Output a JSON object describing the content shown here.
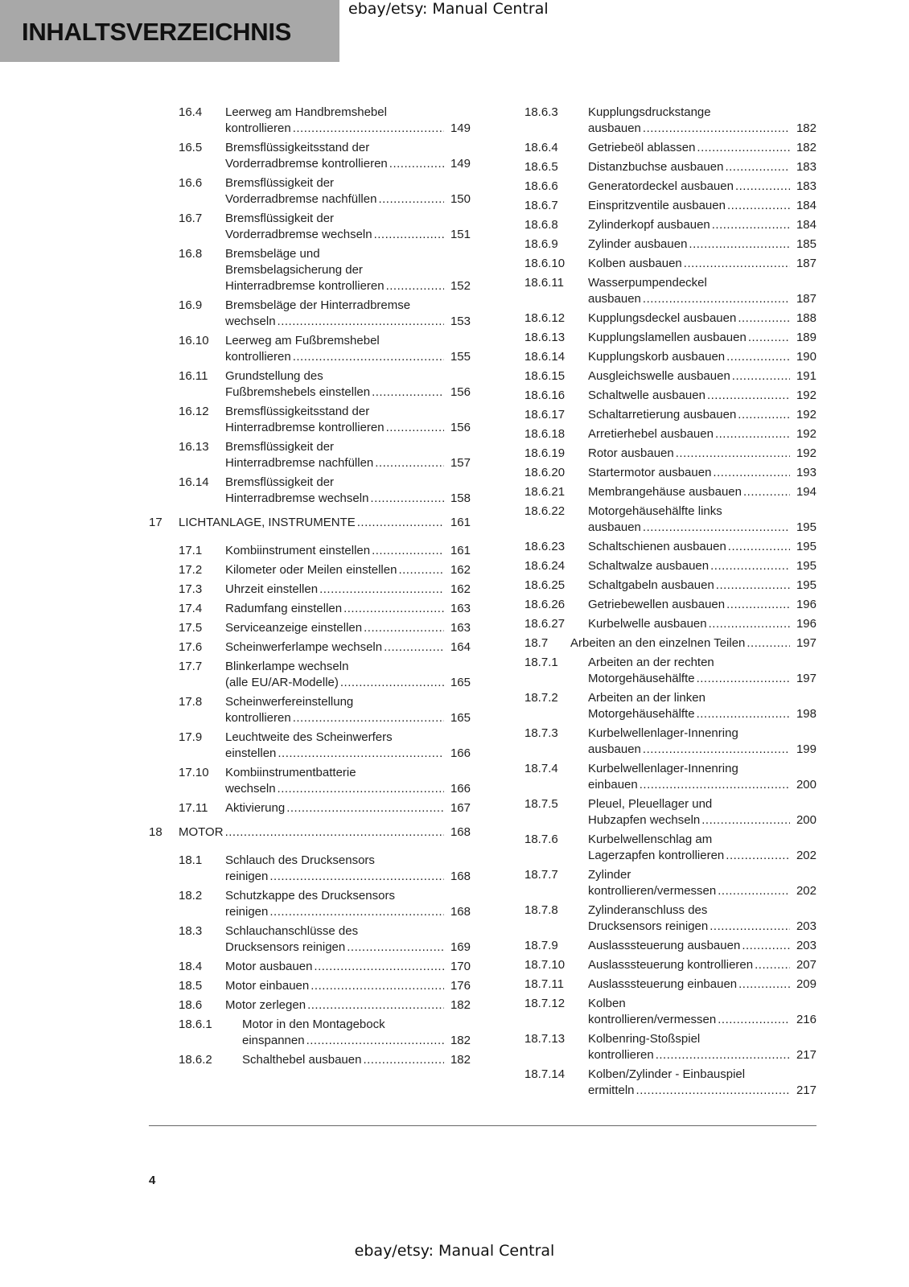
{
  "header": {
    "title": "INHALTSVERZEICHNIS"
  },
  "watermark": {
    "top": "ebay/etsy: Manual Central",
    "bottom": "ebay/etsy: Manual Central"
  },
  "footer": {
    "page_number": "4"
  },
  "columns": [
    [
      {
        "level": 2,
        "num": "16.4",
        "lines": [
          "Leerweg am Handbremshebel",
          "kontrollieren"
        ],
        "page": "149"
      },
      {
        "level": 2,
        "num": "16.5",
        "lines": [
          "Bremsflüssigkeitsstand der",
          "Vorderradbremse kontrollieren"
        ],
        "page": "149"
      },
      {
        "level": 2,
        "num": "16.6",
        "lines": [
          "Bremsflüssigkeit der",
          "Vorderradbremse nachfüllen"
        ],
        "page": "150"
      },
      {
        "level": 2,
        "num": "16.7",
        "lines": [
          "Bremsflüssigkeit der",
          "Vorderradbremse wechseln"
        ],
        "page": "151"
      },
      {
        "level": 2,
        "num": "16.8",
        "lines": [
          "Bremsbeläge und",
          "Bremsbelagsicherung der",
          "Hinterradbremse kontrollieren"
        ],
        "page": "152"
      },
      {
        "level": 2,
        "num": "16.9",
        "lines": [
          "Bremsbeläge der Hinterradbremse",
          "wechseln"
        ],
        "page": "153"
      },
      {
        "level": 2,
        "num": "16.10",
        "lines": [
          "Leerweg am Fußbremshebel",
          "kontrollieren"
        ],
        "page": "155"
      },
      {
        "level": 2,
        "num": "16.11",
        "lines": [
          "Grundstellung des",
          "Fußbremshebels einstellen"
        ],
        "page": "156"
      },
      {
        "level": 2,
        "num": "16.12",
        "lines": [
          "Bremsflüssigkeitsstand der",
          "Hinterradbremse kontrollieren"
        ],
        "page": "156"
      },
      {
        "level": 2,
        "num": "16.13",
        "lines": [
          "Bremsflüssigkeit der",
          "Hinterradbremse nachfüllen"
        ],
        "page": "157"
      },
      {
        "level": 2,
        "num": "16.14",
        "lines": [
          "Bremsflüssigkeit der",
          "Hinterradbremse wechseln"
        ],
        "page": "158"
      },
      {
        "level": 1,
        "num": "17",
        "lines": [
          "LICHTANLAGE, INSTRUMENTE"
        ],
        "page": "161"
      },
      {
        "level": 2,
        "num": "17.1",
        "lines": [
          "Kombiinstrument einstellen"
        ],
        "page": "161"
      },
      {
        "level": 2,
        "num": "17.2",
        "lines": [
          "Kilometer oder Meilen einstellen"
        ],
        "page": "162"
      },
      {
        "level": 2,
        "num": "17.3",
        "lines": [
          "Uhrzeit einstellen"
        ],
        "page": "162"
      },
      {
        "level": 2,
        "num": "17.4",
        "lines": [
          "Radumfang einstellen"
        ],
        "page": "163"
      },
      {
        "level": 2,
        "num": "17.5",
        "lines": [
          "Serviceanzeige einstellen"
        ],
        "page": "163"
      },
      {
        "level": 2,
        "num": "17.6",
        "lines": [
          "Scheinwerferlampe wechseln"
        ],
        "page": "164"
      },
      {
        "level": 2,
        "num": "17.7",
        "lines": [
          "Blinkerlampe wechseln",
          "(alle EU/AR-Modelle)"
        ],
        "page": "165"
      },
      {
        "level": 2,
        "num": "17.8",
        "lines": [
          "Scheinwerfereinstellung",
          "kontrollieren"
        ],
        "page": "165"
      },
      {
        "level": 2,
        "num": "17.9",
        "lines": [
          "Leuchtweite des Scheinwerfers",
          "einstellen"
        ],
        "page": "166"
      },
      {
        "level": 2,
        "num": "17.10",
        "lines": [
          "Kombiinstrumentbatterie",
          "wechseln"
        ],
        "page": "166"
      },
      {
        "level": 2,
        "num": "17.11",
        "lines": [
          "Aktivierung"
        ],
        "page": "167"
      },
      {
        "level": 1,
        "num": "18",
        "lines": [
          "MOTOR"
        ],
        "page": "168"
      },
      {
        "level": 2,
        "num": "18.1",
        "lines": [
          "Schlauch des Drucksensors",
          "reinigen"
        ],
        "page": "168"
      },
      {
        "level": 2,
        "num": "18.2",
        "lines": [
          "Schutzkappe des Drucksensors",
          "reinigen"
        ],
        "page": "168"
      },
      {
        "level": 2,
        "num": "18.3",
        "lines": [
          "Schlauchanschlüsse des",
          "Drucksensors reinigen"
        ],
        "page": "169"
      },
      {
        "level": 2,
        "num": "18.4",
        "lines": [
          "Motor ausbauen"
        ],
        "page": "170"
      },
      {
        "level": 2,
        "num": "18.5",
        "lines": [
          "Motor einbauen"
        ],
        "page": "176"
      },
      {
        "level": 2,
        "num": "18.6",
        "lines": [
          "Motor zerlegen"
        ],
        "page": "182"
      },
      {
        "level": 3,
        "num": "18.6.1",
        "lines": [
          "Motor in den Montagebock",
          "einspannen"
        ],
        "page": "182"
      },
      {
        "level": 3,
        "num": "18.6.2",
        "lines": [
          "Schalthebel ausbauen"
        ],
        "page": "182"
      }
    ],
    [
      {
        "level": 3,
        "num": "18.6.3",
        "lines": [
          "Kupplungsdruckstange",
          "ausbauen"
        ],
        "page": "182"
      },
      {
        "level": 3,
        "num": "18.6.4",
        "lines": [
          "Getriebeöl ablassen"
        ],
        "page": "182"
      },
      {
        "level": 3,
        "num": "18.6.5",
        "lines": [
          "Distanzbuchse ausbauen"
        ],
        "page": "183"
      },
      {
        "level": 3,
        "num": "18.6.6",
        "lines": [
          "Generatordeckel ausbauen"
        ],
        "page": "183"
      },
      {
        "level": 3,
        "num": "18.6.7",
        "lines": [
          "Einspritzventile ausbauen"
        ],
        "page": "184"
      },
      {
        "level": 3,
        "num": "18.6.8",
        "lines": [
          "Zylinderkopf ausbauen"
        ],
        "page": "184"
      },
      {
        "level": 3,
        "num": "18.6.9",
        "lines": [
          "Zylinder ausbauen"
        ],
        "page": "185"
      },
      {
        "level": 3,
        "num": "18.6.10",
        "lines": [
          "Kolben ausbauen"
        ],
        "page": "187"
      },
      {
        "level": 3,
        "num": "18.6.11",
        "lines": [
          "Wasserpumpendeckel",
          "ausbauen"
        ],
        "page": "187"
      },
      {
        "level": 3,
        "num": "18.6.12",
        "lines": [
          "Kupplungsdeckel ausbauen"
        ],
        "page": "188"
      },
      {
        "level": 3,
        "num": "18.6.13",
        "lines": [
          "Kupplungslamellen ausbauen"
        ],
        "page": "189"
      },
      {
        "level": 3,
        "num": "18.6.14",
        "lines": [
          "Kupplungskorb ausbauen"
        ],
        "page": "190"
      },
      {
        "level": 3,
        "num": "18.6.15",
        "lines": [
          "Ausgleichswelle ausbauen"
        ],
        "page": "191"
      },
      {
        "level": 3,
        "num": "18.6.16",
        "lines": [
          "Schaltwelle ausbauen"
        ],
        "page": "192"
      },
      {
        "level": 3,
        "num": "18.6.17",
        "lines": [
          "Schaltarretierung ausbauen"
        ],
        "page": "192"
      },
      {
        "level": 3,
        "num": "18.6.18",
        "lines": [
          "Arretierhebel ausbauen"
        ],
        "page": "192"
      },
      {
        "level": 3,
        "num": "18.6.19",
        "lines": [
          "Rotor ausbauen"
        ],
        "page": "192"
      },
      {
        "level": 3,
        "num": "18.6.20",
        "lines": [
          "Startermotor ausbauen"
        ],
        "page": "193"
      },
      {
        "level": 3,
        "num": "18.6.21",
        "lines": [
          "Membrangehäuse ausbauen"
        ],
        "page": "194"
      },
      {
        "level": 3,
        "num": "18.6.22",
        "lines": [
          "Motorgehäusehälfte links",
          "ausbauen"
        ],
        "page": "195"
      },
      {
        "level": 3,
        "num": "18.6.23",
        "lines": [
          "Schaltschienen ausbauen"
        ],
        "page": "195"
      },
      {
        "level": 3,
        "num": "18.6.24",
        "lines": [
          "Schaltwalze ausbauen"
        ],
        "page": "195"
      },
      {
        "level": 3,
        "num": "18.6.25",
        "lines": [
          "Schaltgabeln ausbauen"
        ],
        "page": "195"
      },
      {
        "level": 3,
        "num": "18.6.26",
        "lines": [
          "Getriebewellen ausbauen"
        ],
        "page": "196"
      },
      {
        "level": 3,
        "num": "18.6.27",
        "lines": [
          "Kurbelwelle ausbauen"
        ],
        "page": "196"
      },
      {
        "level": 2,
        "num": "18.7",
        "lines": [
          "Arbeiten an den einzelnen Teilen"
        ],
        "page": "197"
      },
      {
        "level": 3,
        "num": "18.7.1",
        "lines": [
          "Arbeiten an der rechten",
          "Motorgehäusehälfte"
        ],
        "page": "197"
      },
      {
        "level": 3,
        "num": "18.7.2",
        "lines": [
          "Arbeiten an der linken",
          "Motorgehäusehälfte"
        ],
        "page": "198"
      },
      {
        "level": 3,
        "num": "18.7.3",
        "lines": [
          "Kurbelwellenlager-Innenring",
          "ausbauen"
        ],
        "page": "199"
      },
      {
        "level": 3,
        "num": "18.7.4",
        "lines": [
          "Kurbelwellenlager-Innenring",
          "einbauen"
        ],
        "page": "200"
      },
      {
        "level": 3,
        "num": "18.7.5",
        "lines": [
          "Pleuel, Pleuellager und",
          "Hubzapfen wechseln"
        ],
        "page": "200"
      },
      {
        "level": 3,
        "num": "18.7.6",
        "lines": [
          "Kurbelwellenschlag am",
          "Lagerzapfen kontrollieren"
        ],
        "page": "202"
      },
      {
        "level": 3,
        "num": "18.7.7",
        "lines": [
          "Zylinder",
          "kontrollieren/vermessen"
        ],
        "page": "202"
      },
      {
        "level": 3,
        "num": "18.7.8",
        "lines": [
          "Zylinderanschluss des",
          "Drucksensors reinigen"
        ],
        "page": "203"
      },
      {
        "level": 3,
        "num": "18.7.9",
        "lines": [
          "Auslasssteuerung ausbauen"
        ],
        "page": "203"
      },
      {
        "level": 3,
        "num": "18.7.10",
        "lines": [
          "Auslasssteuerung kontrollieren"
        ],
        "page": "207"
      },
      {
        "level": 3,
        "num": "18.7.11",
        "lines": [
          "Auslasssteuerung einbauen"
        ],
        "page": "209"
      },
      {
        "level": 3,
        "num": "18.7.12",
        "lines": [
          "Kolben",
          "kontrollieren/vermessen"
        ],
        "page": "216"
      },
      {
        "level": 3,
        "num": "18.7.13",
        "lines": [
          "Kolbenring-Stoßspiel",
          "kontrollieren"
        ],
        "page": "217"
      },
      {
        "level": 3,
        "num": "18.7.14",
        "lines": [
          "Kolben/Zylinder - Einbauspiel",
          "ermitteln"
        ],
        "page": "217"
      }
    ]
  ]
}
